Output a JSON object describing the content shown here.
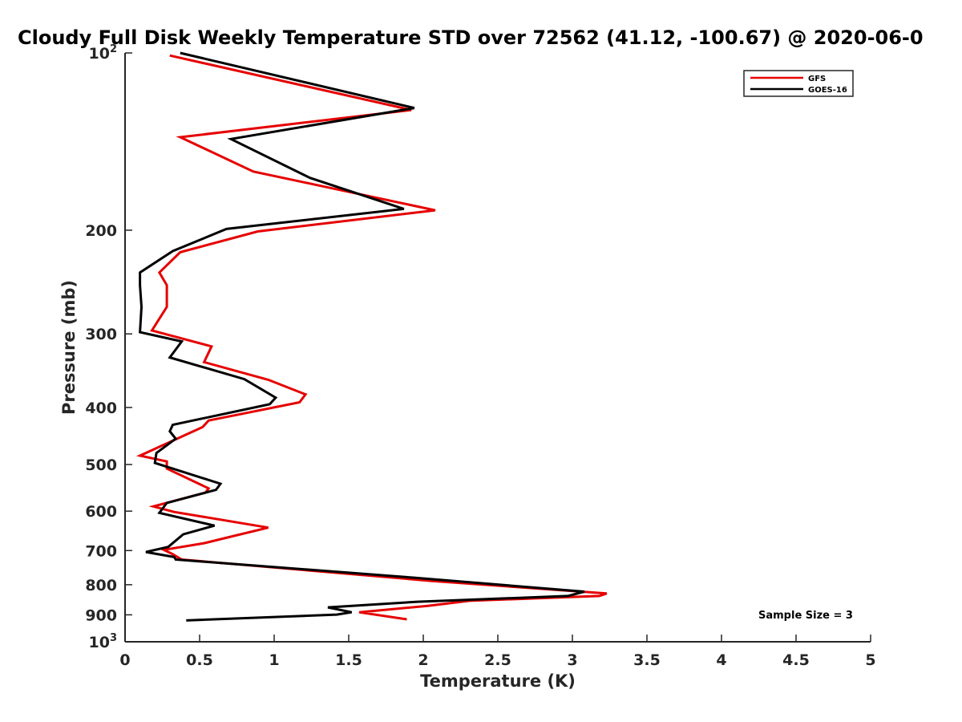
{
  "chart_data": {
    "type": "line",
    "title": "Cloudy Full Disk Weekly Temperature STD over 72562 (41.12, -100.67) @ 2020-06-0",
    "xlabel": "Temperature (K)",
    "ylabel": "Pressure (mb)",
    "xlim": [
      0,
      5
    ],
    "ylim": [
      100,
      1000
    ],
    "yscale": "log",
    "y_reversed": true,
    "grid": false,
    "legend_position": "top-right",
    "colors": {
      "GFS": "#e60000",
      "GOES-16": "#000000"
    },
    "x_ticks": [
      "0",
      "0.5",
      "1",
      "1.5",
      "2",
      "2.5",
      "3",
      "3.5",
      "4",
      "4.5",
      "5"
    ],
    "x_tick_values": [
      0,
      0.5,
      1,
      1.5,
      2,
      2.5,
      3,
      3.5,
      4,
      4.5,
      5
    ],
    "y_ticks": [
      {
        "value": 100,
        "base": "10",
        "exp": "2"
      },
      {
        "value": 200,
        "label": "200"
      },
      {
        "value": 300,
        "label": "300"
      },
      {
        "value": 400,
        "label": "400"
      },
      {
        "value": 500,
        "label": "500"
      },
      {
        "value": 600,
        "label": "600"
      },
      {
        "value": 700,
        "label": "700"
      },
      {
        "value": 800,
        "label": "800"
      },
      {
        "value": 900,
        "label": "900"
      },
      {
        "value": 1000,
        "base": "10",
        "exp": "3"
      }
    ],
    "series": [
      {
        "name": "GFS",
        "color": "#e60000",
        "points": [
          [
            0.3,
            101
          ],
          [
            1.92,
            125
          ],
          [
            0.37,
            139
          ],
          [
            0.86,
            159
          ],
          [
            2.08,
            185
          ],
          [
            0.89,
            201
          ],
          [
            0.37,
            218
          ],
          [
            0.23,
            236
          ],
          [
            0.28,
            248
          ],
          [
            0.28,
            270
          ],
          [
            0.18,
            296
          ],
          [
            0.58,
            315
          ],
          [
            0.53,
            335
          ],
          [
            0.96,
            359
          ],
          [
            1.21,
            380
          ],
          [
            1.17,
            392
          ],
          [
            0.56,
            421
          ],
          [
            0.52,
            432
          ],
          [
            0.1,
            483
          ],
          [
            0.28,
            494
          ],
          [
            0.28,
            508
          ],
          [
            0.56,
            549
          ],
          [
            0.54,
            558
          ],
          [
            0.19,
            589
          ],
          [
            0.33,
            602
          ],
          [
            0.96,
            640
          ],
          [
            0.72,
            662
          ],
          [
            0.53,
            680
          ],
          [
            0.26,
            698
          ],
          [
            0.32,
            710
          ],
          [
            0.38,
            725
          ],
          [
            2.05,
            788
          ],
          [
            3.23,
            828
          ],
          [
            3.18,
            836
          ],
          [
            2.31,
            852
          ],
          [
            2.03,
            869
          ],
          [
            1.57,
            891
          ],
          [
            1.89,
            916
          ]
        ]
      },
      {
        "name": "GOES-16",
        "color": "#000000",
        "points": [
          [
            0.37,
            100
          ],
          [
            1.94,
            124
          ],
          [
            0.71,
            140
          ],
          [
            1.24,
            163
          ],
          [
            1.87,
            184
          ],
          [
            0.68,
            199
          ],
          [
            0.32,
            217
          ],
          [
            0.1,
            236
          ],
          [
            0.1,
            248
          ],
          [
            0.11,
            270
          ],
          [
            0.1,
            298
          ],
          [
            0.38,
            309
          ],
          [
            0.3,
            329
          ],
          [
            0.8,
            358
          ],
          [
            1.01,
            385
          ],
          [
            0.97,
            395
          ],
          [
            0.32,
            428
          ],
          [
            0.3,
            439
          ],
          [
            0.34,
            452
          ],
          [
            0.21,
            478
          ],
          [
            0.2,
            497
          ],
          [
            0.64,
            539
          ],
          [
            0.61,
            552
          ],
          [
            0.28,
            581
          ],
          [
            0.23,
            604
          ],
          [
            0.6,
            635
          ],
          [
            0.39,
            657
          ],
          [
            0.29,
            690
          ],
          [
            0.14,
            704
          ],
          [
            0.33,
            718
          ],
          [
            0.34,
            725
          ],
          [
            1.93,
            778
          ],
          [
            3.08,
            822
          ],
          [
            2.97,
            836
          ],
          [
            1.96,
            855
          ],
          [
            1.36,
            874
          ],
          [
            1.52,
            891
          ],
          [
            1.42,
            899
          ],
          [
            0.41,
            920
          ]
        ]
      }
    ],
    "annotation": "Sample Size = 3"
  }
}
